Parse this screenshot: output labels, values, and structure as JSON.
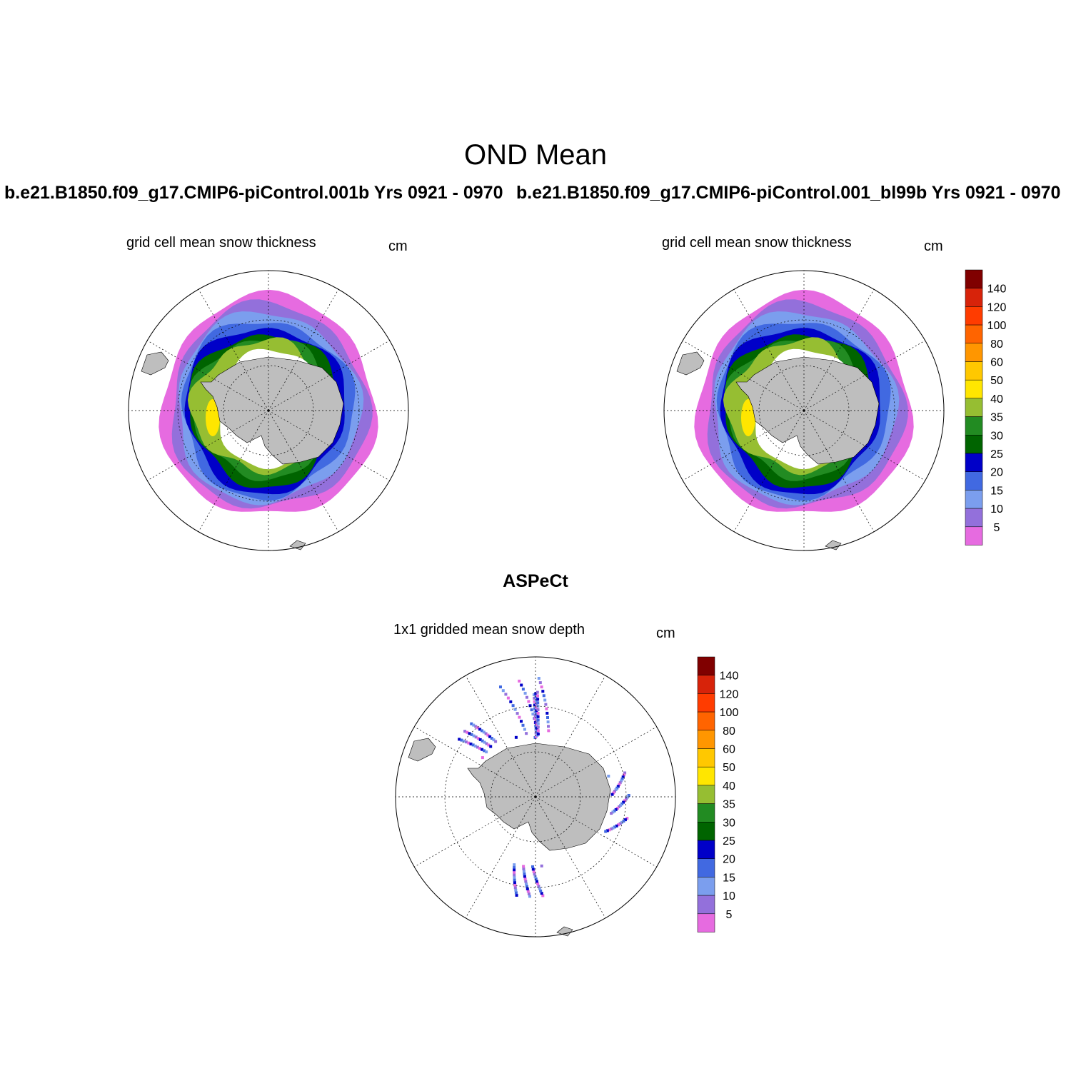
{
  "title": "OND Mean",
  "panels": [
    {
      "run": "b.e21.B1850.f09_g17.CMIP6-piControl.001b  Yrs 0921 - 0970",
      "subtitle": "grid cell mean snow thickness",
      "units": "cm"
    },
    {
      "run": "b.e21.B1850.f09_g17.CMIP6-piControl.001_bl99b  Yrs 0921 - 0970",
      "subtitle": "grid cell mean snow thickness",
      "units": "cm"
    }
  ],
  "observations": {
    "title": "ASPeCt",
    "subtitle": "1x1 gridded mean snow depth",
    "units": "cm"
  },
  "colorbar": {
    "labels": [
      "140",
      "120",
      "100",
      "80",
      "60",
      "50",
      "40",
      "35",
      "30",
      "25",
      "20",
      "15",
      "10",
      "5"
    ],
    "colors": [
      "#800000",
      "#d7230a",
      "#ff3c00",
      "#ff6400",
      "#ff9600",
      "#ffc800",
      "#ffe600",
      "#96be32",
      "#228b22",
      "#006400",
      "#0000c8",
      "#4169e1",
      "#7b9eee",
      "#9370db",
      "#e66be0"
    ]
  },
  "colors": {
    "land": "#bebebe",
    "background": "#ffffff"
  }
}
